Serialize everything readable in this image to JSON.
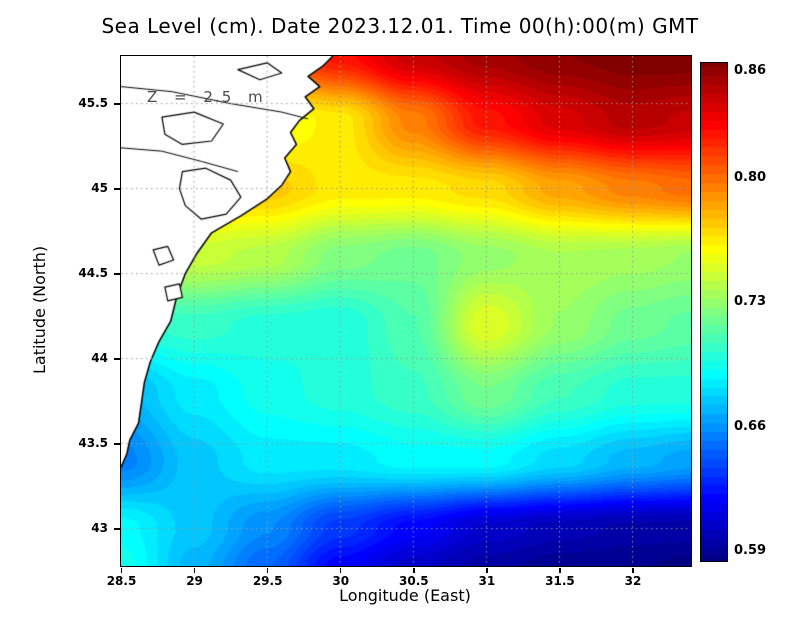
{
  "colors": {
    "land": "#ffffff",
    "coast": "#000000",
    "grid_line": "#999999",
    "frame": "#000000",
    "annotation_text": "#4a4a4a"
  },
  "chart_data": {
    "type": "heatmap",
    "title": "Sea Level (cm). Date 2023.12.01. Time 00(h):00(m) GMT",
    "xlabel": "Longitude (East)",
    "ylabel": "Latitude (North)",
    "annotation": "Z = 2.5 m",
    "x_range": [
      28.5,
      32.4
    ],
    "y_range": [
      42.78,
      45.78
    ],
    "xticks": [
      28.5,
      29,
      29.5,
      30,
      30.5,
      31,
      31.5,
      32
    ],
    "yticks": [
      43,
      43.5,
      44,
      44.5,
      45,
      45.5
    ],
    "grid_on": true,
    "colormap": "jet",
    "colorbar": {
      "vmin": 0.585,
      "vmax": 0.865,
      "ticks": [
        {
          "label": "0.86",
          "value": 0.86
        },
        {
          "label": "0.80",
          "value": 0.8
        },
        {
          "label": "0.73",
          "value": 0.73
        },
        {
          "label": "0.66",
          "value": 0.66
        },
        {
          "label": "0.59",
          "value": 0.59
        }
      ]
    },
    "field": {
      "lons": [
        28.5,
        29.0,
        29.5,
        30.0,
        30.5,
        31.0,
        31.5,
        32.0,
        32.4
      ],
      "lats": [
        45.78,
        45.4,
        45.0,
        44.6,
        44.2,
        43.8,
        43.4,
        43.0,
        42.78
      ],
      "values": [
        [
          0.78,
          0.79,
          0.8,
          0.825,
          0.845,
          0.855,
          0.862,
          0.866,
          0.866
        ],
        [
          0.75,
          0.75,
          0.755,
          0.765,
          0.795,
          0.825,
          0.84,
          0.85,
          0.846
        ],
        [
          0.77,
          0.775,
          0.775,
          0.765,
          0.765,
          0.77,
          0.785,
          0.795,
          0.8
        ],
        [
          0.74,
          0.745,
          0.74,
          0.725,
          0.72,
          0.73,
          0.737,
          0.735,
          0.732
        ],
        [
          0.7,
          0.705,
          0.7,
          0.698,
          0.712,
          0.752,
          0.732,
          0.72,
          0.716
        ],
        [
          0.67,
          0.685,
          0.695,
          0.7,
          0.706,
          0.722,
          0.708,
          0.7,
          0.7
        ],
        [
          0.655,
          0.675,
          0.685,
          0.685,
          0.69,
          0.69,
          0.68,
          0.67,
          0.665
        ],
        [
          0.69,
          0.675,
          0.658,
          0.635,
          0.62,
          0.606,
          0.6,
          0.596,
          0.595
        ],
        [
          0.695,
          0.67,
          0.648,
          0.62,
          0.605,
          0.595,
          0.59,
          0.588,
          0.586
        ]
      ]
    },
    "coastline": [
      [
        29.95,
        45.78
      ],
      [
        29.88,
        45.72
      ],
      [
        29.78,
        45.66
      ],
      [
        29.86,
        45.6
      ],
      [
        29.76,
        45.54
      ],
      [
        29.82,
        45.47
      ],
      [
        29.72,
        45.4
      ],
      [
        29.66,
        45.33
      ],
      [
        29.7,
        45.26
      ],
      [
        29.62,
        45.18
      ],
      [
        29.66,
        45.1
      ],
      [
        29.6,
        45.02
      ],
      [
        29.5,
        44.94
      ],
      [
        29.32,
        44.84
      ],
      [
        29.12,
        44.74
      ],
      [
        29.02,
        44.62
      ],
      [
        28.94,
        44.5
      ],
      [
        28.88,
        44.36
      ],
      [
        28.84,
        44.22
      ],
      [
        28.76,
        44.1
      ],
      [
        28.7,
        43.98
      ],
      [
        28.66,
        43.86
      ],
      [
        28.64,
        43.74
      ],
      [
        28.62,
        43.62
      ],
      [
        28.56,
        43.52
      ],
      [
        28.54,
        43.44
      ],
      [
        28.5,
        43.36
      ]
    ],
    "lakes": [
      [
        [
          28.92,
          45.1
        ],
        [
          29.08,
          45.12
        ],
        [
          29.25,
          45.05
        ],
        [
          29.32,
          44.95
        ],
        [
          29.22,
          44.85
        ],
        [
          29.05,
          44.82
        ],
        [
          28.94,
          44.9
        ],
        [
          28.9,
          45.0
        ]
      ],
      [
        [
          28.78,
          45.42
        ],
        [
          29.0,
          45.45
        ],
        [
          29.2,
          45.38
        ],
        [
          29.12,
          45.28
        ],
        [
          28.92,
          45.26
        ],
        [
          28.8,
          45.32
        ]
      ],
      [
        [
          28.72,
          44.64
        ],
        [
          28.82,
          44.66
        ],
        [
          28.86,
          44.58
        ],
        [
          28.76,
          44.55
        ]
      ],
      [
        [
          28.8,
          44.42
        ],
        [
          28.9,
          44.44
        ],
        [
          28.92,
          44.36
        ],
        [
          28.82,
          44.34
        ]
      ],
      [
        [
          29.3,
          45.7
        ],
        [
          29.5,
          45.74
        ],
        [
          29.6,
          45.68
        ],
        [
          29.45,
          45.64
        ]
      ]
    ],
    "channels": [
      [
        [
          28.5,
          45.6
        ],
        [
          28.85,
          45.57
        ],
        [
          29.25,
          45.5
        ],
        [
          29.6,
          45.45
        ],
        [
          29.78,
          45.41
        ]
      ],
      [
        [
          28.5,
          45.24
        ],
        [
          28.78,
          45.22
        ],
        [
          29.05,
          45.16
        ],
        [
          29.3,
          45.1
        ]
      ]
    ]
  }
}
